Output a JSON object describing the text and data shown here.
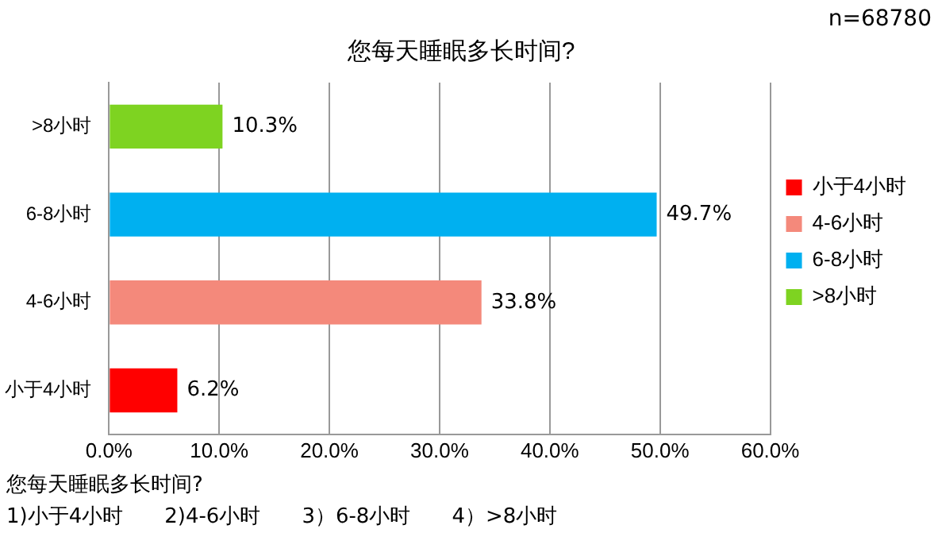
{
  "chart_data": {
    "type": "bar",
    "orientation": "horizontal",
    "title": "您每天睡眠多长时间?",
    "categories": [
      ">8小时",
      "6-8小时",
      "4-6小时",
      "小于4小时"
    ],
    "series": [
      {
        "name": "小于4小时",
        "color": "#ff0000",
        "values": [
          null,
          null,
          null,
          6.2
        ],
        "value_labels": [
          null,
          null,
          null,
          "6.2%"
        ]
      },
      {
        "name": "4-6小时",
        "color": "#f4897b",
        "values": [
          null,
          null,
          33.8,
          null
        ],
        "value_labels": [
          null,
          null,
          "33.8%",
          null
        ]
      },
      {
        "name": "6-8小时",
        "color": "#00b0f0",
        "values": [
          null,
          49.7,
          null,
          null
        ],
        "value_labels": [
          null,
          "49.7%",
          null,
          null
        ]
      },
      {
        "name": ">8小时",
        "color": "#7ed321",
        "values": [
          10.3,
          null,
          null,
          null
        ],
        "value_labels": [
          "10.3%",
          null,
          null,
          null
        ]
      }
    ],
    "xlim": [
      0,
      60
    ],
    "xticks": [
      {
        "value": 0,
        "label": "0.0%"
      },
      {
        "value": 10,
        "label": "10.0%"
      },
      {
        "value": 20,
        "label": "20.0%"
      },
      {
        "value": 30,
        "label": "30.0%"
      },
      {
        "value": 40,
        "label": "40.0%"
      },
      {
        "value": 50,
        "label": "50.0%"
      },
      {
        "value": 60,
        "label": "60.0%"
      }
    ],
    "grid": "x",
    "legend": "right",
    "annotations": [
      "n=68780",
      "您每天睡眠多长时间?",
      "1)小于4小时　　2)4-6小时　　3）6-8小时　　4）>8小时"
    ]
  }
}
